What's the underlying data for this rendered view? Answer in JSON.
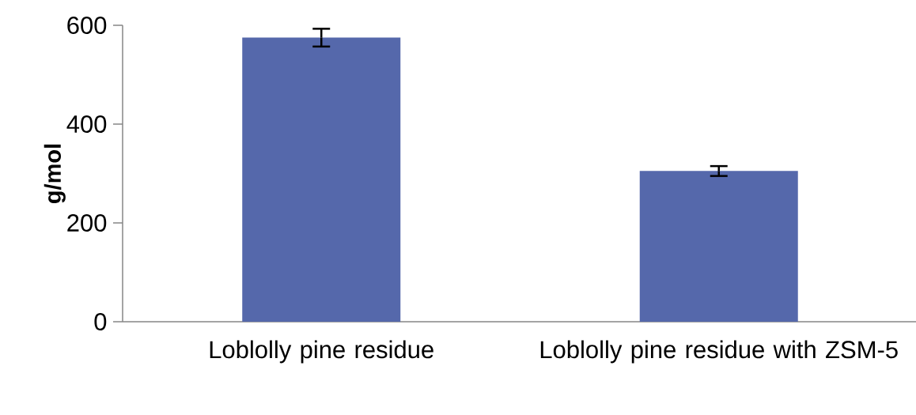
{
  "chart_data": {
    "type": "bar",
    "ylabel": "g/mol",
    "categories": [
      "Loblolly pine residue",
      "Loblolly pine residue with ZSM-5"
    ],
    "values": [
      575,
      305
    ],
    "errors": [
      18,
      10
    ],
    "color": "#5568ab",
    "ylim": [
      0,
      600
    ],
    "yticks": [
      0,
      200,
      400,
      600
    ],
    "grid": false
  }
}
